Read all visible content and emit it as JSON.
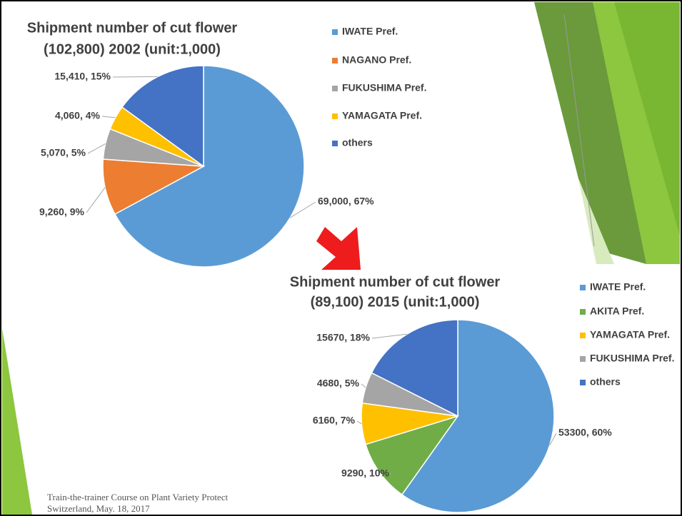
{
  "chart_data": [
    {
      "type": "pie",
      "title": "Shipment number of cut flower",
      "subtitle": "(102,800) 2002 (unit:1,000)",
      "categories": [
        "IWATE Pref.",
        "NAGANO Pref.",
        "FUKUSHIMA Pref.",
        "YAMAGATA Pref.",
        "others"
      ],
      "values": [
        69000,
        9260,
        5070,
        4060,
        15410
      ],
      "value_labels": [
        "69,000, 67%",
        "9,260, 9%",
        "5,070, 5%",
        "4,060, 4%",
        "15,410, 15%"
      ],
      "colors": [
        "#5b9bd5",
        "#ed7d31",
        "#a5a5a5",
        "#ffc000",
        "#4472c4"
      ]
    },
    {
      "type": "pie",
      "title": "Shipment number of cut flower",
      "subtitle": "(89,100) 2015 (unit:1,000)",
      "categories": [
        "IWATE Pref.",
        "AKITA Pref.",
        "YAMAGATA Pref.",
        "FUKUSHIMA Pref.",
        "others"
      ],
      "values": [
        53300,
        9290,
        6160,
        4680,
        15670
      ],
      "value_labels": [
        "53300, 60%",
        "9290, 10%",
        "6160, 7%",
        "4680, 5%",
        "15670, 18%"
      ],
      "colors": [
        "#5b9bd5",
        "#70ad47",
        "#ffc000",
        "#a5a5a5",
        "#4472c4"
      ]
    }
  ],
  "footer": [
    "Train-the-trainer Course on Plant Variety Protect",
    "Switzerland, May. 18, 2017"
  ]
}
